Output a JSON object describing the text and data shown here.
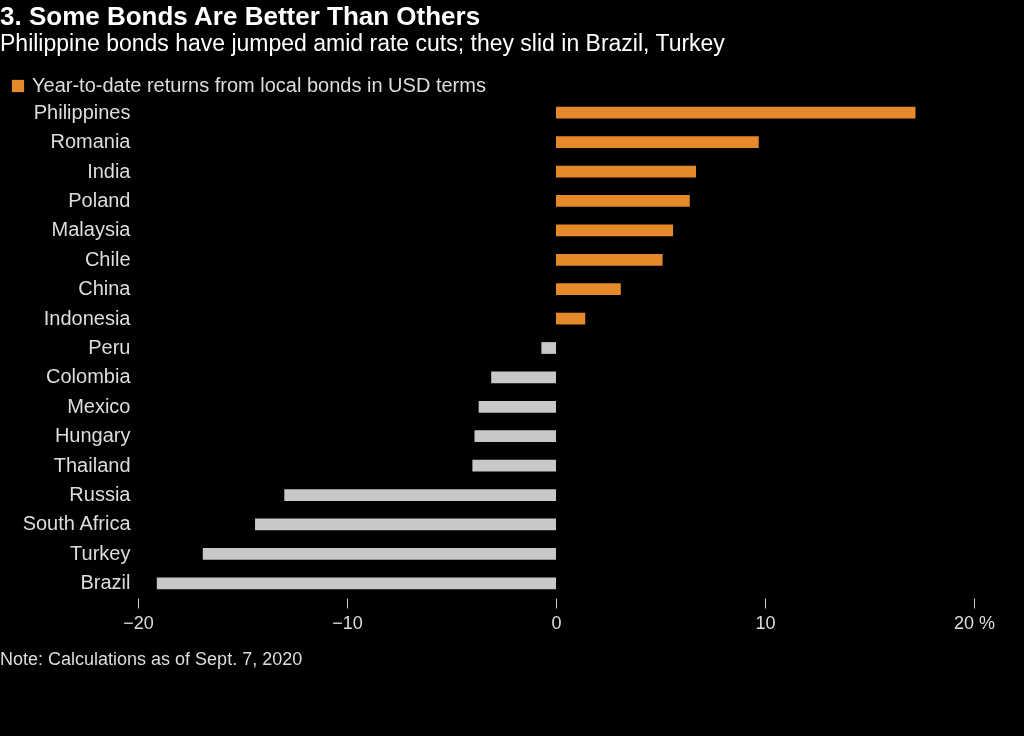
{
  "chart_data": {
    "type": "bar",
    "orientation": "horizontal",
    "title": "3. Some Bonds Are Better Than Others",
    "subtitle": "Philippine bonds have jumped amid rate cuts; they slid in Brazil, Turkey",
    "categories": [
      "Philippines",
      "Romania",
      "India",
      "Poland",
      "Malaysia",
      "Chile",
      "China",
      "Indonesia",
      "Peru",
      "Colombia",
      "Mexico",
      "Hungary",
      "Thailand",
      "Russia",
      "South Africa",
      "Turkey",
      "Brazil"
    ],
    "series": [
      {
        "name": "Year-to-date returns from local bonds in USD terms",
        "color": "#e5892a",
        "colors": [
          "#e5892a",
          "#e5892a",
          "#e5892a",
          "#e5892a",
          "#e5892a",
          "#e5892a",
          "#e5892a",
          "#e5892a",
          "#c8c8c8",
          "#c8c8c8",
          "#c8c8c8",
          "#c8c8c8",
          "#c8c8c8",
          "#c8c8c8",
          "#c8c8c8",
          "#c8c8c8",
          "#c8c8c8"
        ],
        "values": [
          17.2,
          9.7,
          6.7,
          6.4,
          5.6,
          5.1,
          3.1,
          1.4,
          -0.7,
          -3.1,
          -3.7,
          -3.9,
          -4.0,
          -13.0,
          -14.4,
          -16.9,
          -19.1
        ]
      }
    ],
    "xlim": [
      -20,
      20
    ],
    "xticks": [
      -20,
      -10,
      0,
      10,
      {
        "value": 20,
        "label": "20 %"
      }
    ],
    "legend": "top left",
    "grid": false,
    "annotations": [
      "Note: Calculations as of Sept. 7, 2020"
    ]
  }
}
